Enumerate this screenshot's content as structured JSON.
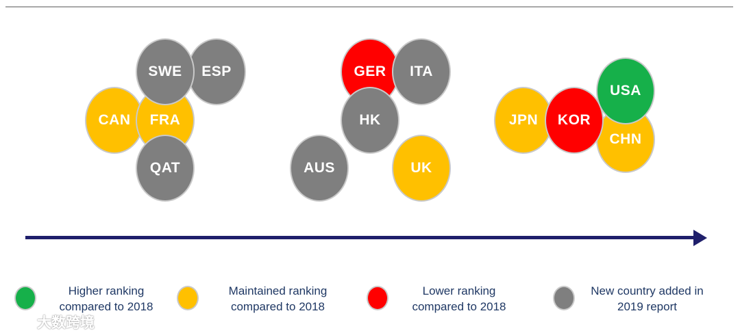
{
  "colors": {
    "higher": "#16b04a",
    "maintained": "#ffc000",
    "lower": "#ff0000",
    "new": "#7f7f7f",
    "arrow": "#1f1f6b",
    "legend_text": "#1f3864"
  },
  "countries": {
    "swe": "SWE",
    "esp": "ESP",
    "can": "CAN",
    "fra": "FRA",
    "qat": "QAT",
    "ger": "GER",
    "ita": "ITA",
    "hk": "HK",
    "aus": "AUS",
    "uk": "UK",
    "jpn": "JPN",
    "kor": "KOR",
    "usa": "USA",
    "chn": "CHN"
  },
  "legend": {
    "higher": {
      "line1": "Higher ranking",
      "line2": "compared to 2018"
    },
    "maintained": {
      "line1": "Maintained ranking",
      "line2": "compared to 2018"
    },
    "lower": {
      "line1": "Lower ranking",
      "line2": "compared to 2018"
    },
    "new": {
      "line1": "New country added in",
      "line2": "2019 report"
    }
  },
  "watermark": {
    "text": "大数跨境"
  }
}
